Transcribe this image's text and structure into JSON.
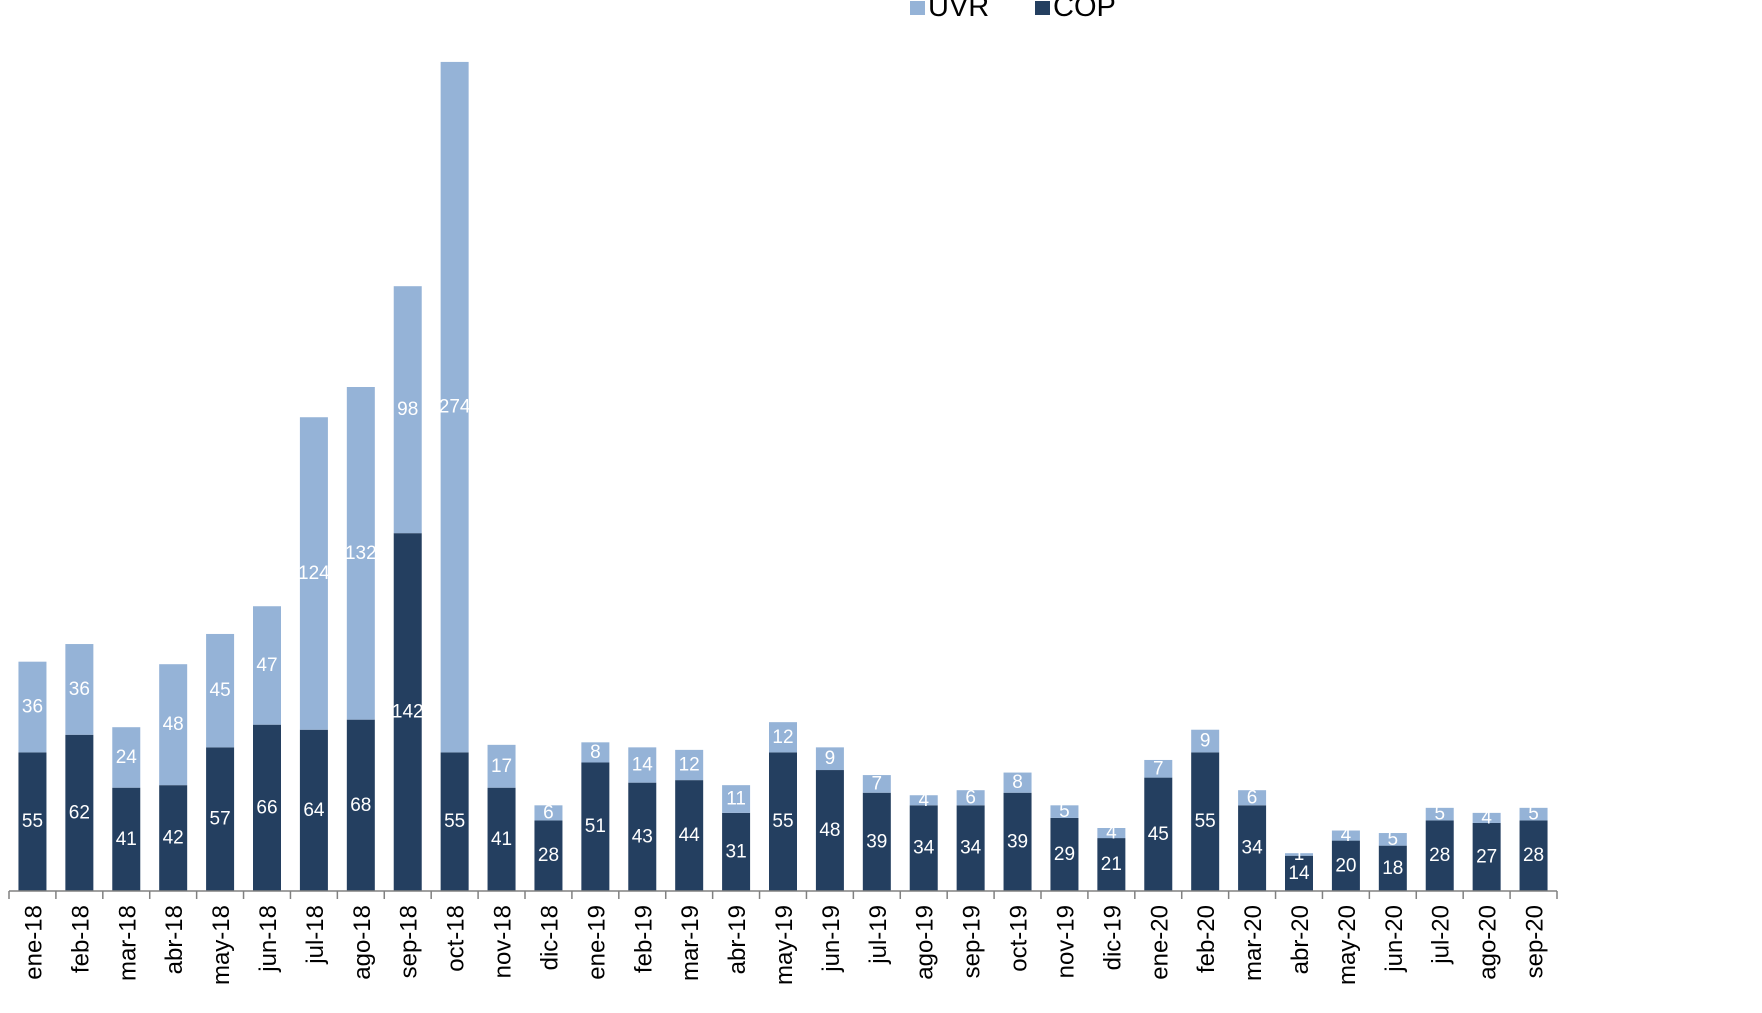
{
  "chart_data": {
    "type": "bar",
    "stacked": true,
    "title": "",
    "xlabel": "",
    "ylabel": "",
    "legend": {
      "position": "top"
    },
    "grid": false,
    "ylim": [
      0,
      340
    ],
    "categories": [
      "ene-18",
      "feb-18",
      "mar-18",
      "abr-18",
      "may-18",
      "jun-18",
      "jul-18",
      "ago-18",
      "sep-18",
      "oct-18",
      "nov-18",
      "dic-18",
      "ene-19",
      "feb-19",
      "mar-19",
      "abr-19",
      "may-19",
      "jun-19",
      "jul-19",
      "ago-19",
      "sep-19",
      "oct-19",
      "nov-19",
      "dic-19",
      "ene-20",
      "feb-20",
      "mar-20",
      "abr-20",
      "may-20",
      "jun-20",
      "jul-20",
      "ago-20",
      "sep-20"
    ],
    "series": [
      {
        "name": "COP",
        "color": "#243f60",
        "values": [
          55,
          62,
          41,
          42,
          57,
          66,
          64,
          68,
          142,
          55,
          41,
          28,
          51,
          43,
          44,
          31,
          55,
          48,
          39,
          34,
          34,
          39,
          29,
          21,
          45,
          55,
          34,
          14,
          20,
          18,
          28,
          27,
          28
        ]
      },
      {
        "name": "UVR",
        "color": "#95b3d7",
        "values": [
          36,
          36,
          24,
          48,
          45,
          47,
          124,
          132,
          98,
          274,
          17,
          6,
          8,
          14,
          12,
          11,
          12,
          9,
          7,
          4,
          6,
          8,
          5,
          4,
          7,
          9,
          6,
          1,
          4,
          5,
          5,
          4,
          5
        ]
      }
    ]
  }
}
